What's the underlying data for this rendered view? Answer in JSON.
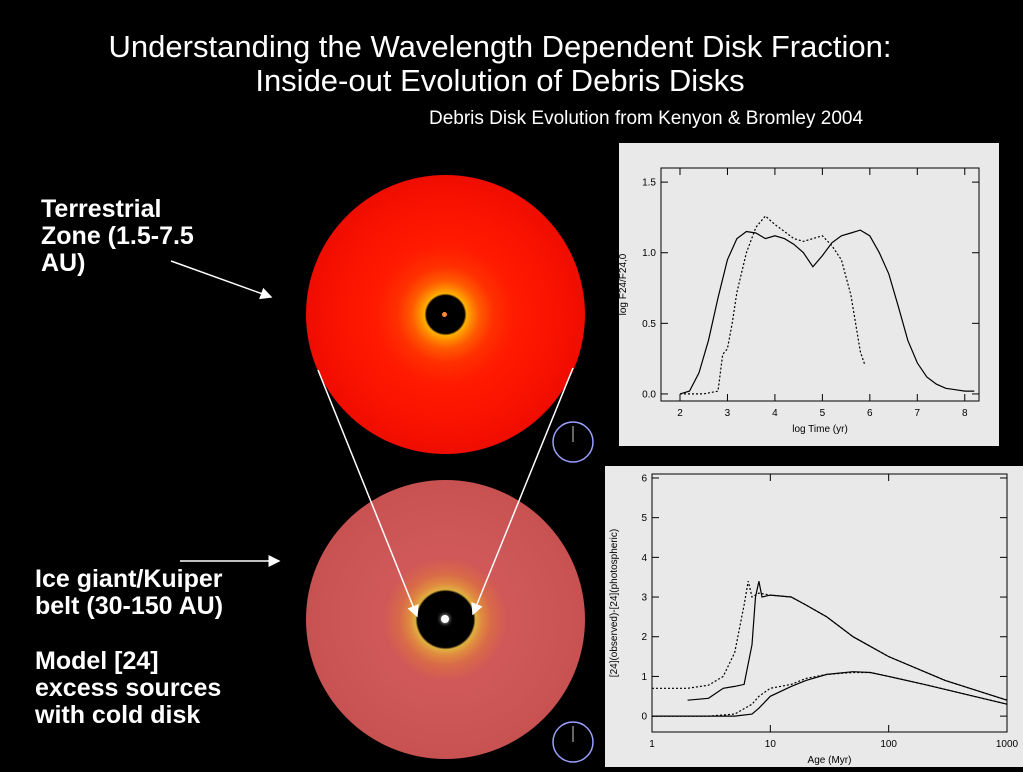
{
  "slide": {
    "title_line1": "Understanding the Wavelength Dependent Disk Fraction:",
    "title_line2": "Inside-out Evolution of Debris Disks",
    "credit": "Debris Disk Evolution from Kenyon & Bromley 2004",
    "label_terrestrial": [
      "Terrestrial",
      "Zone (1.5-7.5",
      "AU)"
    ],
    "label_kuiper": [
      "Ice giant/Kuiper",
      "belt (30-150 AU)"
    ],
    "label_model": [
      "Model [24]",
      "excess sources",
      "with cold disk"
    ]
  },
  "colors": {
    "background": "#000000",
    "disk_red": "#ff1a00",
    "disk_salmon": "#d05858",
    "plot_bg": "#e9e9e9"
  },
  "icons": [
    "clock-icon",
    "clock-icon"
  ],
  "chart_data": [
    {
      "type": "line",
      "title": "",
      "xlabel": "log Time (yr)",
      "ylabel": "log F24/F24,0",
      "xlim": [
        1.6,
        8.3
      ],
      "ylim": [
        -0.05,
        1.6
      ],
      "xticks": [
        2,
        3,
        4,
        5,
        6,
        7,
        8
      ],
      "yticks": [
        0.0,
        0.5,
        1.0,
        1.5
      ],
      "ytick_labels": [
        "0.0",
        "0.5",
        "1.0",
        "1.5"
      ],
      "series": [
        {
          "style": "solid",
          "x": [
            2.0,
            2.2,
            2.4,
            2.6,
            2.8,
            3.0,
            3.2,
            3.4,
            3.6,
            3.8,
            4.0,
            4.2,
            4.4,
            4.6,
            4.8,
            5.0,
            5.2,
            5.4,
            5.6,
            5.8,
            6.0,
            6.2,
            6.4,
            6.6,
            6.8,
            7.0,
            7.2,
            7.4,
            7.6,
            7.8,
            8.0,
            8.2
          ],
          "y": [
            0.0,
            0.02,
            0.15,
            0.38,
            0.68,
            0.95,
            1.1,
            1.15,
            1.14,
            1.1,
            1.12,
            1.1,
            1.06,
            1.0,
            0.9,
            0.98,
            1.07,
            1.12,
            1.14,
            1.16,
            1.12,
            1.0,
            0.85,
            0.62,
            0.38,
            0.22,
            0.12,
            0.07,
            0.04,
            0.03,
            0.02,
            0.02
          ]
        },
        {
          "style": "dotted",
          "x": [
            2.0,
            2.5,
            2.8,
            2.9,
            3.0,
            3.1,
            3.2,
            3.4,
            3.6,
            3.8,
            4.0,
            4.2,
            4.4,
            4.6,
            4.8,
            5.0,
            5.2,
            5.4,
            5.6,
            5.7,
            5.8,
            5.9
          ],
          "y": [
            0.0,
            0.0,
            0.02,
            0.28,
            0.32,
            0.5,
            0.72,
            1.0,
            1.18,
            1.26,
            1.2,
            1.15,
            1.1,
            1.08,
            1.1,
            1.12,
            1.05,
            0.95,
            0.7,
            0.5,
            0.3,
            0.2
          ]
        }
      ]
    },
    {
      "type": "line",
      "title": "",
      "xlabel": "Age (Myr)",
      "ylabel": "[24](observed)-[24](photospheric)",
      "xscale": "log",
      "xlim": [
        1,
        1000
      ],
      "ylim": [
        -0.4,
        6.1
      ],
      "xticks": [
        1,
        10,
        100,
        1000
      ],
      "yticks": [
        0,
        1,
        2,
        3,
        4,
        5,
        6
      ],
      "series": [
        {
          "style": "dotted",
          "x": [
            1,
            2,
            3,
            4,
            5,
            6,
            6.5,
            7,
            8,
            10,
            15,
            20,
            30,
            50,
            100,
            300,
            1000
          ],
          "y": [
            0.7,
            0.7,
            0.78,
            1.0,
            1.6,
            2.8,
            3.4,
            3.0,
            3.1,
            3.05,
            3.0,
            2.8,
            2.5,
            2.0,
            1.5,
            0.9,
            0.4
          ]
        },
        {
          "style": "solid",
          "x": [
            2,
            3,
            4,
            5,
            6,
            7,
            7.5,
            8,
            8.5,
            10,
            15,
            20,
            30,
            50,
            100,
            300,
            1000
          ],
          "y": [
            0.4,
            0.45,
            0.7,
            0.75,
            0.8,
            1.8,
            3.0,
            3.4,
            3.0,
            3.05,
            3.0,
            2.8,
            2.5,
            2.0,
            1.5,
            0.9,
            0.4
          ]
        },
        {
          "style": "dotted",
          "x": [
            1,
            3,
            5,
            7,
            8,
            10,
            15,
            20,
            30,
            50,
            70,
            100,
            200,
            1000
          ],
          "y": [
            0.0,
            0.0,
            0.05,
            0.3,
            0.5,
            0.7,
            0.8,
            0.95,
            1.05,
            1.1,
            1.1,
            1.0,
            0.8,
            0.3
          ]
        },
        {
          "style": "solid",
          "x": [
            1,
            3,
            5,
            7,
            8,
            10,
            15,
            20,
            30,
            50,
            70,
            100,
            200,
            1000
          ],
          "y": [
            0.0,
            0.0,
            0.0,
            0.05,
            0.2,
            0.5,
            0.75,
            0.9,
            1.05,
            1.12,
            1.1,
            1.0,
            0.8,
            0.3
          ]
        }
      ]
    }
  ]
}
